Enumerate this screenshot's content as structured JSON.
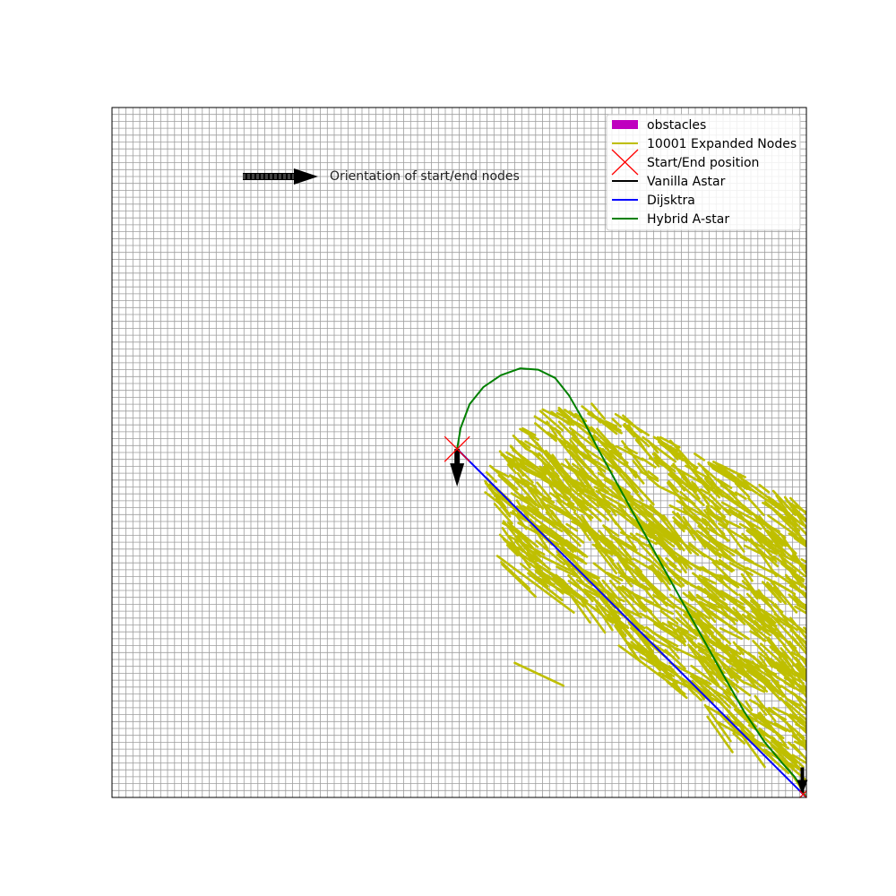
{
  "chart_data": {
    "type": "line",
    "title": "",
    "xlabel": "",
    "ylabel": "",
    "xlim": [
      0,
      100
    ],
    "ylim": [
      0,
      100
    ],
    "grid": true,
    "grid_step": 1,
    "legend_position": "top-right",
    "annotation": "Orientation of start/end nodes",
    "legend": [
      {
        "label": "obstacles",
        "kind": "patch",
        "color": "#bf00bf"
      },
      {
        "label": "10001 Expanded Nodes",
        "kind": "line",
        "color": "#bfbf00"
      },
      {
        "label": "Start/End position",
        "kind": "marker",
        "color": "#ff0000"
      },
      {
        "label": "Vanilla Astar",
        "kind": "line",
        "color": "#000000"
      },
      {
        "label": "Dijsktra",
        "kind": "line",
        "color": "#0000ff"
      },
      {
        "label": "Hybrid A-star",
        "kind": "line",
        "color": "#008000"
      }
    ],
    "start": {
      "x": 49.7,
      "y": 50.5,
      "heading": "down"
    },
    "end": {
      "x": 99.8,
      "y": 0.2,
      "heading": "down"
    },
    "series": [
      {
        "name": "Dijsktra",
        "color": "#0000ff",
        "x": [
          49.7,
          99.8
        ],
        "y": [
          50.5,
          0.2
        ]
      },
      {
        "name": "Vanilla Astar",
        "color": "#000000",
        "x": [
          99.8,
          99.8
        ],
        "y": [
          0.2,
          0.2
        ]
      },
      {
        "name": "Hybrid A-star",
        "color": "#008000",
        "x": [
          49.7,
          50.2,
          51.5,
          53.5,
          56.0,
          58.8,
          61.4,
          63.8,
          65.8,
          67.8,
          70.0,
          73.0,
          76.0,
          79.0,
          82.0,
          85.0,
          88.0,
          91.0,
          94.0,
          96.5,
          98.3,
          99.3,
          99.8
        ],
        "y": [
          50.5,
          53.5,
          57.0,
          59.5,
          61.2,
          62.2,
          62.0,
          60.8,
          58.3,
          54.8,
          50.5,
          45.0,
          39.5,
          34.0,
          28.6,
          23.2,
          17.8,
          12.5,
          8.0,
          5.0,
          3.0,
          1.5,
          0.2
        ]
      }
    ],
    "expanded_nodes": {
      "count": 10001,
      "color": "#bfbf00",
      "region_polygon": [
        [
          52.7,
          45.7
        ],
        [
          60.0,
          56.0
        ],
        [
          69.0,
          58.0
        ],
        [
          80.0,
          52.0
        ],
        [
          99.7,
          42.5
        ],
        [
          99.7,
          3.0
        ],
        [
          96.0,
          5.0
        ],
        [
          85.0,
          12.0
        ],
        [
          74.0,
          22.0
        ],
        [
          66.0,
          30.0
        ],
        [
          55.0,
          34.0
        ],
        [
          56.0,
          41.0
        ]
      ]
    }
  }
}
